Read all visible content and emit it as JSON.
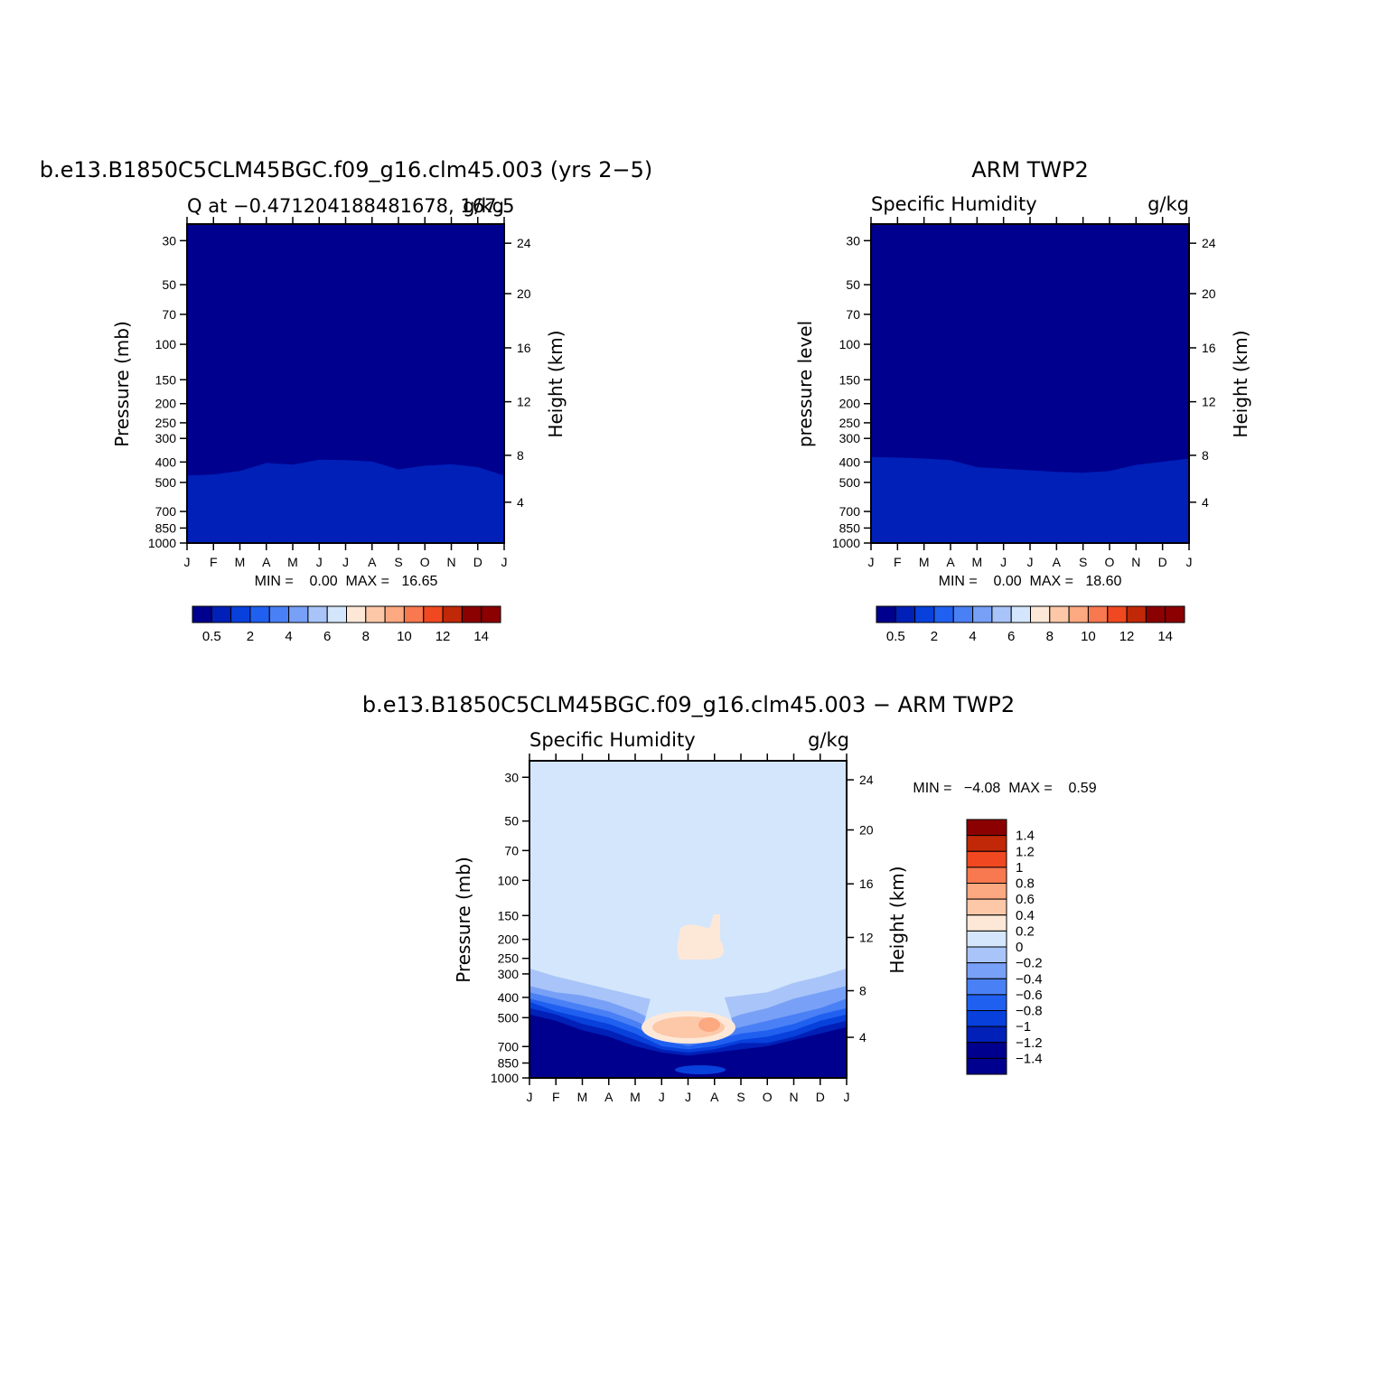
{
  "chart_data": [
    {
      "type": "heatmap",
      "title": "b.e13.B1850C5CLM45BGC.f09_g16.clm45.003 (yrs 2−5)",
      "left_label": "Q at −0.471204188481678, 167.5",
      "right_label": "g/kg",
      "ylabel": "Pressure (mb)",
      "ylabel_right": "Height (km)",
      "x_ticks": [
        "J",
        "F",
        "M",
        "A",
        "M",
        "J",
        "J",
        "A",
        "S",
        "O",
        "N",
        "D",
        "J"
      ],
      "y_ticks_pressure": [
        30,
        50,
        70,
        100,
        150,
        200,
        250,
        300,
        400,
        500,
        700,
        850,
        1000
      ],
      "y_ticks_height": [
        24,
        20,
        16,
        12,
        8,
        4
      ],
      "ylim_pressure": [
        1000,
        24
      ],
      "stats": "MIN =    0.00  MAX =   16.65",
      "min": 0.0,
      "max": 16.65,
      "colorbar": {
        "levels": [
          0.5,
          1,
          2,
          3,
          4,
          5,
          6,
          7,
          8,
          9,
          10,
          11,
          12,
          13,
          14
        ],
        "labels": [
          "0.5",
          "2",
          "4",
          "6",
          "8",
          "10",
          "12",
          "14"
        ]
      }
    },
    {
      "type": "heatmap",
      "title": "ARM TWP2",
      "left_label": "Specific Humidity",
      "right_label": "g/kg",
      "ylabel": "pressure level",
      "ylabel_right": "Height (km)",
      "x_ticks": [
        "J",
        "F",
        "M",
        "A",
        "M",
        "J",
        "J",
        "A",
        "S",
        "O",
        "N",
        "D",
        "J"
      ],
      "y_ticks_pressure": [
        30,
        50,
        70,
        100,
        150,
        200,
        250,
        300,
        400,
        500,
        700,
        850,
        1000
      ],
      "y_ticks_height": [
        24,
        20,
        16,
        12,
        8,
        4
      ],
      "ylim_pressure": [
        1000,
        24
      ],
      "stats": "MIN =    0.00  MAX =   18.60",
      "min": 0.0,
      "max": 18.6,
      "colorbar": {
        "levels": [
          0.5,
          1,
          2,
          3,
          4,
          5,
          6,
          7,
          8,
          9,
          10,
          11,
          12,
          13,
          14
        ],
        "labels": [
          "0.5",
          "2",
          "4",
          "6",
          "8",
          "10",
          "12",
          "14"
        ]
      }
    },
    {
      "type": "heatmap",
      "title": "b.e13.B1850C5CLM45BGC.f09_g16.clm45.003 − ARM TWP2",
      "left_label": "Specific Humidity",
      "right_label": "g/kg",
      "ylabel": "Pressure (mb)",
      "ylabel_right": "Height (km)",
      "x_ticks": [
        "J",
        "F",
        "M",
        "A",
        "M",
        "J",
        "J",
        "A",
        "S",
        "O",
        "N",
        "D",
        "J"
      ],
      "y_ticks_pressure": [
        30,
        50,
        70,
        100,
        150,
        200,
        250,
        300,
        400,
        500,
        700,
        850,
        1000
      ],
      "y_ticks_height": [
        24,
        20,
        16,
        12,
        8,
        4
      ],
      "ylim_pressure": [
        1000,
        24
      ],
      "stats": "MIN =   −4.08  MAX =    0.59",
      "min": -4.08,
      "max": 0.59,
      "colorbar": {
        "levels": [
          -1.4,
          -1.2,
          -1,
          -0.8,
          -0.6,
          -0.4,
          -0.2,
          0,
          0.2,
          0.4,
          0.6,
          0.8,
          1,
          1.2,
          1.4
        ],
        "labels": [
          "1.4",
          "1.2",
          "1",
          "0.8",
          "0.6",
          "0.4",
          "0.2",
          "0",
          "−0.2",
          "−0.4",
          "−0.6",
          "−0.8",
          "−1",
          "−1.2",
          "−1.4"
        ]
      }
    }
  ],
  "colors": {
    "palette": [
      "#00008e",
      "#0020b8",
      "#0840dc",
      "#2060f0",
      "#4a80f5",
      "#78a0f6",
      "#a8c4f8",
      "#d4e6fc",
      "#fde8d8",
      "#fcc8a8",
      "#fca880",
      "#f87850",
      "#f04820",
      "#c02808",
      "#8b0000"
    ]
  }
}
